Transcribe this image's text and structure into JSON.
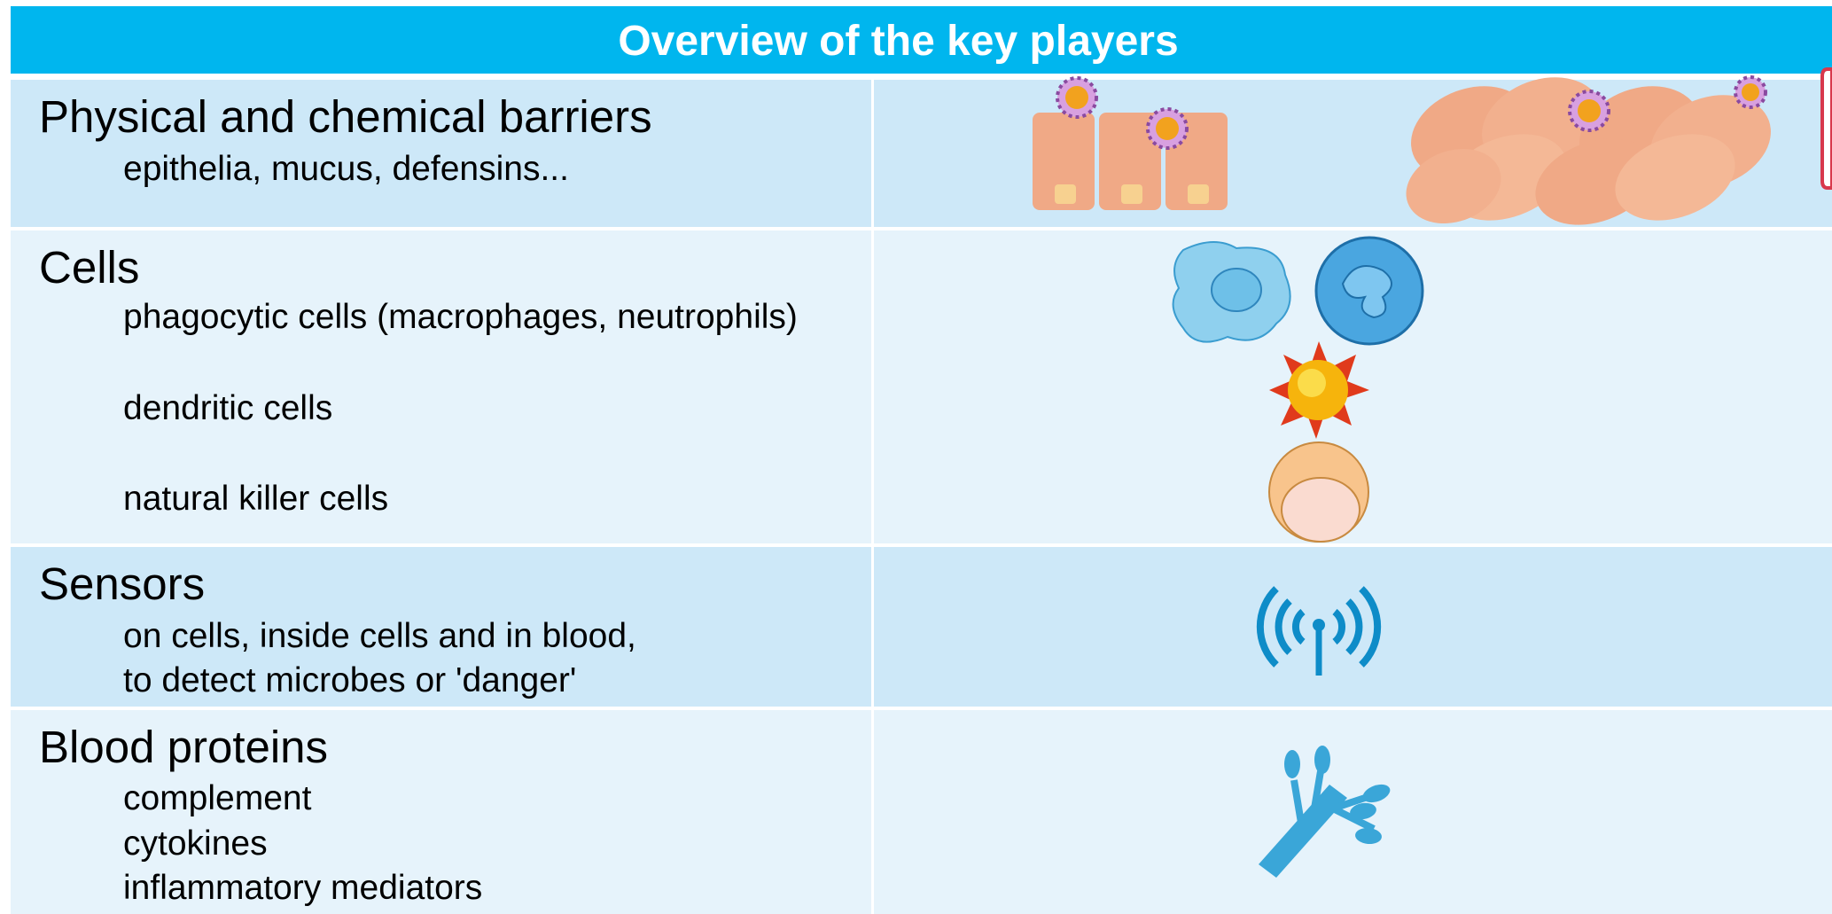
{
  "header": {
    "title": "Overview of the key players"
  },
  "rows": [
    {
      "heading": "Physical and chemical barriers",
      "items": [
        "epithelia, mucus, defensins..."
      ]
    },
    {
      "heading": "Cells",
      "items": [
        "phagocytic cells (macrophages, neutrophils)",
        "dendritic cells",
        "natural killer cells"
      ]
    },
    {
      "heading": "Sensors",
      "items": [
        "on cells, inside cells and in blood,",
        "to detect microbes or 'danger'"
      ]
    },
    {
      "heading": "Blood proteins",
      "items": [
        "complement",
        "cytokines",
        "inflammatory mediators"
      ]
    }
  ]
}
